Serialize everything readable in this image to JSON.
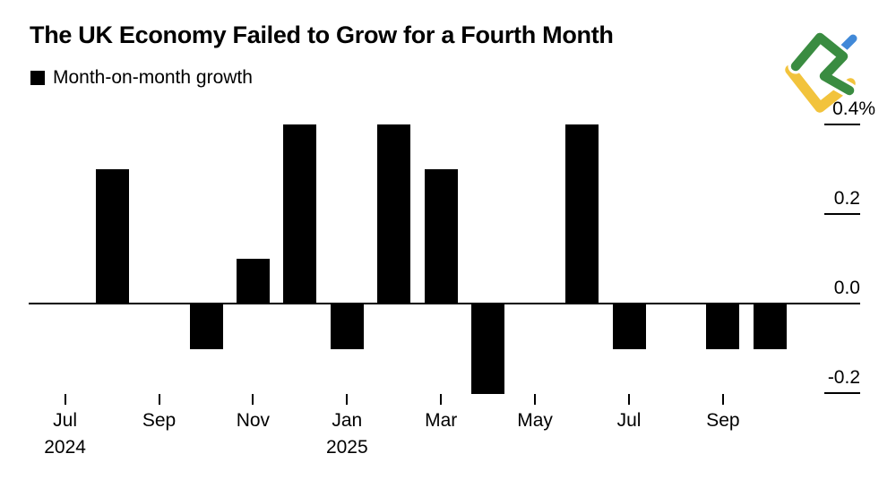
{
  "title": "The UK Economy Failed to Grow for a Fourth Month",
  "legend": {
    "label": "Month-on-month growth",
    "swatch_color": "#000000"
  },
  "logo": {
    "name": "LiteFinance",
    "colors": {
      "green": "#3a8c41",
      "blue": "#4189d8",
      "yellow": "#f2c33c"
    }
  },
  "chart_data": {
    "type": "bar",
    "title": "The UK Economy Failed to Grow for a Fourth Month",
    "series_name": "Month-on-month growth",
    "unit": "%",
    "categories": [
      "Jul 2024",
      "Aug 2024",
      "Sep 2024",
      "Oct 2024",
      "Nov 2024",
      "Dec 2024",
      "Jan 2025",
      "Feb 2025",
      "Mar 2025",
      "Apr 2025",
      "May 2025",
      "Jun 2025",
      "Jul 2025",
      "Aug 2025",
      "Sep 2025",
      "Oct 2025"
    ],
    "values": [
      0.0,
      0.3,
      0.0,
      -0.1,
      0.1,
      0.4,
      -0.1,
      0.4,
      0.3,
      -0.2,
      0.0,
      0.4,
      -0.1,
      0.0,
      -0.1,
      -0.1
    ],
    "bar_color": "#000000",
    "grid": false,
    "y_axis": {
      "side": "right",
      "tick_values": [
        0.4,
        0.2,
        0.0,
        -0.2
      ],
      "tick_labels": [
        "0.4%",
        "0.2",
        "0.0",
        "-0.2"
      ],
      "range": [
        -0.28,
        0.45
      ]
    },
    "x_axis": {
      "tick_month_indices": [
        0,
        2,
        4,
        6,
        8,
        10,
        12,
        14
      ],
      "tick_labels": [
        {
          "month": "Jul",
          "year": "2024"
        },
        {
          "month": "Sep"
        },
        {
          "month": "Nov"
        },
        {
          "month": "Jan",
          "year": "2025"
        },
        {
          "month": "Mar"
        },
        {
          "month": "May"
        },
        {
          "month": "Jul"
        },
        {
          "month": "Sep"
        }
      ]
    }
  }
}
